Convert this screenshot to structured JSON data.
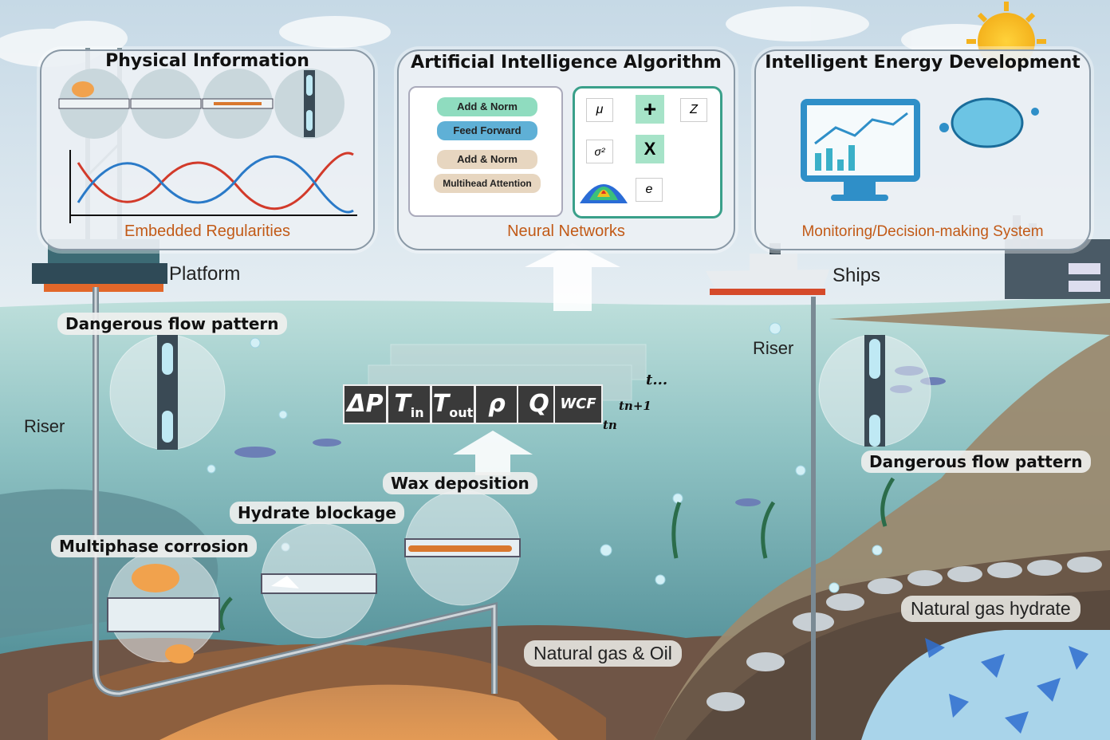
{
  "panels": {
    "physical": {
      "title": "Physical Information",
      "caption": "Embedded Regularities"
    },
    "ai": {
      "title": "Artificial Intelligence Algorithm",
      "caption": "Neural Networks"
    },
    "energy": {
      "title": "Intelligent Energy Development",
      "caption": "Monitoring/Decision-making System"
    }
  },
  "transformer": {
    "add_norm_top": "Add & Norm",
    "feed_forward": "Feed Forward",
    "add_norm_bottom": "Add & Norm",
    "multihead": "Multihead Attention"
  },
  "vae": {
    "mu": "μ",
    "plus": "+",
    "z": "Z",
    "sigma": "σ²",
    "times": "X",
    "e": "e"
  },
  "labels": {
    "platform": "Platform",
    "ships": "Ships",
    "riser_left": "Riser",
    "riser_right": "Riser",
    "dangerous_left": "Dangerous flow pattern",
    "dangerous_right": "Dangerous flow pattern",
    "wax": "Wax deposition",
    "hydrate_blockage": "Hydrate blockage",
    "corrosion": "Multiphase corrosion",
    "gas_oil": "Natural gas & Oil",
    "gas_hydrate": "Natural gas hydrate"
  },
  "params": {
    "dp": "ΔP",
    "tin": "T",
    "tin_sub": "in",
    "tout": "T",
    "tout_sub": "out",
    "rho": "ρ",
    "q": "Q",
    "wcf": "WCF"
  },
  "time_labels": {
    "t_dots": "t...",
    "t_n1": "tn+1",
    "t_n": "tn"
  },
  "colors": {
    "sea": "#7fb3b6",
    "accent": "#c25a17",
    "sky": "#cfe0ea"
  }
}
